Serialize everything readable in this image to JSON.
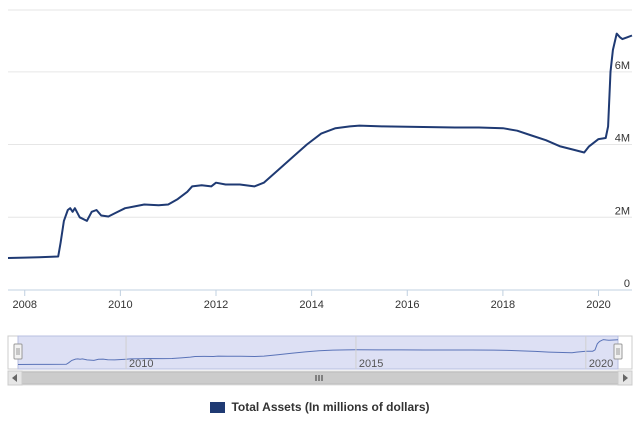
{
  "chart_data": {
    "type": "line",
    "title": "",
    "xlabel": "",
    "ylabel": "",
    "xlim": [
      2007.65,
      2020.7
    ],
    "ylim": [
      0,
      7.7
    ],
    "x_ticks": [
      {
        "value": 2008,
        "label": "2008"
      },
      {
        "value": 2010,
        "label": "2010"
      },
      {
        "value": 2012,
        "label": "2012"
      },
      {
        "value": 2014,
        "label": "2014"
      },
      {
        "value": 2016,
        "label": "2016"
      },
      {
        "value": 2018,
        "label": "2018"
      },
      {
        "value": 2020,
        "label": "2020"
      }
    ],
    "y_ticks": [
      {
        "value": 0,
        "label": "0"
      },
      {
        "value": 2,
        "label": "2M"
      },
      {
        "value": 4,
        "label": "4M"
      },
      {
        "value": 6,
        "label": "6M"
      }
    ],
    "grid": true,
    "legend_position": "bottom-center",
    "series": [
      {
        "name": "Total Assets (In millions of dollars)",
        "color": "#1f3a73",
        "points": [
          [
            2007.65,
            0.88
          ],
          [
            2008.0,
            0.89
          ],
          [
            2008.3,
            0.9
          ],
          [
            2008.7,
            0.92
          ],
          [
            2008.75,
            1.3
          ],
          [
            2008.82,
            1.9
          ],
          [
            2008.9,
            2.2
          ],
          [
            2008.95,
            2.25
          ],
          [
            2009.0,
            2.15
          ],
          [
            2009.05,
            2.25
          ],
          [
            2009.15,
            2.0
          ],
          [
            2009.3,
            1.9
          ],
          [
            2009.4,
            2.15
          ],
          [
            2009.5,
            2.2
          ],
          [
            2009.6,
            2.05
          ],
          [
            2009.75,
            2.02
          ],
          [
            2009.9,
            2.12
          ],
          [
            2010.1,
            2.25
          ],
          [
            2010.3,
            2.3
          ],
          [
            2010.5,
            2.35
          ],
          [
            2010.8,
            2.33
          ],
          [
            2011.0,
            2.35
          ],
          [
            2011.2,
            2.5
          ],
          [
            2011.4,
            2.7
          ],
          [
            2011.5,
            2.85
          ],
          [
            2011.7,
            2.88
          ],
          [
            2011.9,
            2.85
          ],
          [
            2012.0,
            2.95
          ],
          [
            2012.2,
            2.9
          ],
          [
            2012.5,
            2.9
          ],
          [
            2012.8,
            2.85
          ],
          [
            2013.0,
            2.95
          ],
          [
            2013.3,
            3.3
          ],
          [
            2013.6,
            3.65
          ],
          [
            2013.9,
            4.0
          ],
          [
            2014.2,
            4.3
          ],
          [
            2014.5,
            4.45
          ],
          [
            2014.8,
            4.5
          ],
          [
            2015.0,
            4.52
          ],
          [
            2015.5,
            4.5
          ],
          [
            2016.0,
            4.49
          ],
          [
            2016.5,
            4.48
          ],
          [
            2017.0,
            4.47
          ],
          [
            2017.5,
            4.47
          ],
          [
            2018.0,
            4.45
          ],
          [
            2018.3,
            4.38
          ],
          [
            2018.6,
            4.25
          ],
          [
            2018.9,
            4.12
          ],
          [
            2019.2,
            3.95
          ],
          [
            2019.5,
            3.85
          ],
          [
            2019.7,
            3.78
          ],
          [
            2019.8,
            3.95
          ],
          [
            2020.0,
            4.15
          ],
          [
            2020.15,
            4.18
          ],
          [
            2020.2,
            4.5
          ],
          [
            2020.25,
            6.0
          ],
          [
            2020.3,
            6.6
          ],
          [
            2020.38,
            7.05
          ],
          [
            2020.45,
            6.95
          ],
          [
            2020.5,
            6.9
          ],
          [
            2020.6,
            6.95
          ],
          [
            2020.7,
            7.0
          ]
        ]
      }
    ]
  },
  "navigator": {
    "tick_labels": [
      {
        "value": 2010,
        "label": "2010"
      },
      {
        "value": 2015,
        "label": "2015"
      },
      {
        "value": 2020,
        "label": "2020"
      }
    ],
    "scroll_left_icon": "arrow-left-icon",
    "scroll_right_icon": "arrow-right-icon",
    "scrollbar_grip_icon": "grip-icon",
    "handle_icon": "drag-handle-icon",
    "fill_color": "#dde0f4",
    "line_color": "#5a73b8"
  },
  "legend": {
    "label": "Total Assets (In millions of dollars)",
    "color": "#1f3a73"
  }
}
